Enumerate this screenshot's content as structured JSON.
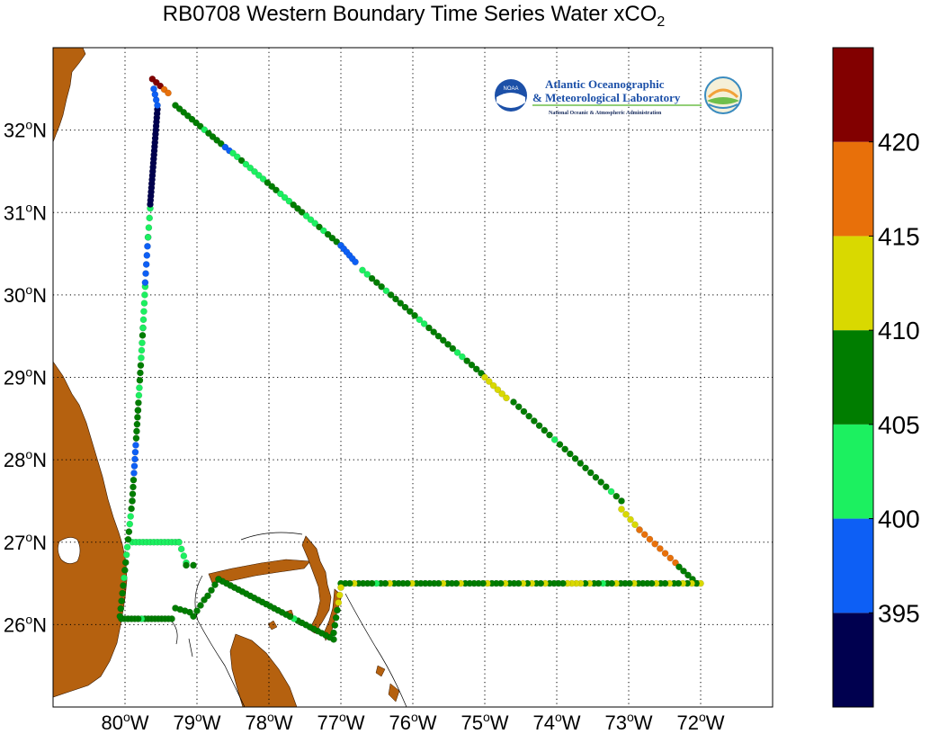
{
  "title": "RB0708 Western Boundary Time Series Water xCO",
  "title_sub": "2",
  "logo": {
    "line1": "Atlantic Oceanographic",
    "line2": "& Meteorological Laboratory",
    "line3": "National Oceanic & Atmospheric Administration",
    "badge": "NOAA",
    "colors": {
      "noaa_blue": "#1c50a8",
      "seal_green": "#6fbf4a",
      "seal_orange": "#f2a23a"
    }
  },
  "colors": {
    "land": "#b5610f",
    "ocean": "#ffffff",
    "grid": "#000000"
  },
  "chart_data": {
    "type": "scatter",
    "subtype": "geographic ship track colored by value",
    "xlim": [
      -81,
      -71
    ],
    "ylim": [
      25,
      33
    ],
    "lon_ticks": [
      -80,
      -79,
      -78,
      -77,
      -76,
      -75,
      -74,
      -73,
      -72
    ],
    "lat_ticks": [
      26,
      27,
      28,
      29,
      30,
      31,
      32
    ],
    "lon_labels": [
      "80",
      "79",
      "78",
      "77",
      "76",
      "75",
      "74",
      "73",
      "72"
    ],
    "lat_labels": [
      "26",
      "27",
      "28",
      "29",
      "30",
      "31",
      "32"
    ],
    "lon_suffix": "W",
    "lat_suffix": "N",
    "deg_symbol": "o",
    "grid": true,
    "colorbar": {
      "range": [
        390,
        425
      ],
      "tick_values": [
        395,
        400,
        405,
        410,
        415,
        420
      ],
      "tick_labels": [
        "395",
        "400",
        "405",
        "410",
        "415",
        "420"
      ],
      "bands": [
        {
          "from": 390,
          "to": 395,
          "color": "#00004f"
        },
        {
          "from": 395,
          "to": 400,
          "color": "#0d5ff5"
        },
        {
          "from": 400,
          "to": 405,
          "color": "#1cf060"
        },
        {
          "from": 405,
          "to": 410,
          "color": "#007d00"
        },
        {
          "from": 410,
          "to": 415,
          "color": "#d9d900"
        },
        {
          "from": 415,
          "to": 420,
          "color": "#e8700a"
        },
        {
          "from": 420,
          "to": 425,
          "color": "#820000"
        }
      ]
    },
    "track_segments": [
      {
        "from": [
          -79.62,
          32.62
        ],
        "to": [
          -79.4,
          32.45
        ],
        "n": 5,
        "values": [
          422,
          421,
          420,
          418,
          417
        ]
      },
      {
        "from": [
          -79.3,
          32.3
        ],
        "to": [
          -78.55,
          31.75
        ],
        "n": 14,
        "values": [
          407,
          406,
          407,
          406,
          408,
          406,
          407,
          402,
          406,
          407,
          406,
          405,
          398,
          397
        ]
      },
      {
        "from": [
          -78.5,
          31.72
        ],
        "to": [
          -77.0,
          30.6
        ],
        "n": 26,
        "values": [
          403,
          402,
          406,
          402,
          403,
          401,
          404,
          402,
          406,
          407,
          406,
          402,
          403,
          402,
          405,
          406,
          407,
          402,
          403,
          401,
          406,
          402,
          406,
          407,
          406,
          402
        ]
      },
      {
        "from": [
          -77.0,
          30.6
        ],
        "to": [
          -76.8,
          30.4
        ],
        "n": 6,
        "values": [
          398,
          397,
          398,
          396,
          397,
          398
        ]
      },
      {
        "from": [
          -76.7,
          30.3
        ],
        "to": [
          -75.05,
          29.05
        ],
        "n": 26,
        "values": [
          403,
          402,
          406,
          406,
          407,
          403,
          406,
          407,
          406,
          407,
          406,
          406,
          402,
          403,
          406,
          407,
          408,
          406,
          407,
          406,
          402,
          403,
          406,
          407,
          406,
          405
        ]
      },
      {
        "from": [
          -75.0,
          29.0
        ],
        "to": [
          -74.7,
          28.75
        ],
        "n": 6,
        "values": [
          412,
          411,
          413,
          412,
          411,
          410
        ]
      },
      {
        "from": [
          -74.6,
          28.7
        ],
        "to": [
          -73.1,
          27.5
        ],
        "n": 22,
        "values": [
          407,
          406,
          406,
          407,
          408,
          406,
          407,
          406,
          402,
          406,
          407,
          406,
          407,
          406,
          408,
          406,
          407,
          406,
          407,
          402,
          406,
          407
        ]
      },
      {
        "from": [
          -73.1,
          27.4
        ],
        "to": [
          -72.85,
          27.15
        ],
        "n": 5,
        "values": [
          412,
          411,
          412,
          411,
          412
        ]
      },
      {
        "from": [
          -72.85,
          27.15
        ],
        "to": [
          -72.35,
          26.75
        ],
        "n": 8,
        "values": [
          416,
          417,
          416,
          418,
          417,
          416,
          417,
          416
        ]
      },
      {
        "from": [
          -72.3,
          26.7
        ],
        "to": [
          -72.05,
          26.5
        ],
        "n": 5,
        "values": [
          408,
          407,
          406,
          408,
          407
        ]
      },
      {
        "from": [
          -72.0,
          26.5
        ],
        "to": [
          -77.0,
          26.5
        ],
        "n": 82,
        "values": [
          411,
          408,
          411,
          407,
          411,
          407,
          408,
          411,
          406,
          407,
          411,
          408,
          407,
          406,
          407,
          411,
          407,
          408,
          406,
          411,
          407,
          408,
          402,
          407,
          406,
          411,
          407,
          411,
          412,
          411,
          412,
          407,
          406,
          408,
          407,
          411,
          408,
          407,
          411,
          407,
          411,
          406,
          407,
          408,
          411,
          407,
          408,
          407,
          411,
          406,
          407,
          408,
          407,
          406,
          411,
          407,
          408,
          406,
          411,
          407,
          408,
          407,
          406,
          407,
          408,
          411,
          407,
          406,
          408,
          407,
          411,
          407,
          406,
          402,
          407,
          408,
          406,
          407,
          411,
          407,
          408,
          406
        ]
      },
      {
        "from": [
          -77.0,
          26.45
        ],
        "to": [
          -77.1,
          25.9
        ],
        "n": 7,
        "values": [
          412,
          411,
          412,
          407,
          406,
          407,
          408
        ]
      },
      {
        "from": [
          -77.1,
          25.82
        ],
        "to": [
          -78.7,
          26.55
        ],
        "n": 30,
        "values": [
          407,
          406,
          408,
          407,
          406,
          407,
          408,
          406,
          407,
          406,
          402,
          407,
          408,
          406,
          407,
          408,
          406,
          407,
          406,
          408,
          407,
          406,
          407,
          408,
          406,
          407,
          408,
          406,
          407,
          406
        ]
      },
      {
        "from": [
          -78.7,
          26.55
        ],
        "to": [
          -78.85,
          26.35
        ],
        "n": 4,
        "values": [
          407,
          406,
          407,
          408
        ]
      },
      {
        "from": [
          -78.9,
          26.3
        ],
        "to": [
          -79.05,
          26.1
        ],
        "n": 4,
        "values": [
          407,
          406,
          407,
          408
        ]
      },
      {
        "from": [
          -79.1,
          26.15
        ],
        "to": [
          -79.3,
          26.2
        ],
        "n": 4,
        "values": [
          407,
          406,
          408,
          407
        ]
      },
      {
        "from": [
          -79.35,
          26.07
        ],
        "to": [
          -80.05,
          26.07
        ],
        "n": 16,
        "values": [
          407,
          406,
          407,
          408,
          406,
          407,
          408,
          406,
          407,
          402,
          406,
          407,
          408,
          406,
          407,
          406
        ]
      },
      {
        "from": [
          -79.9,
          27.0
        ],
        "to": [
          -79.25,
          27.0
        ],
        "n": 14,
        "values": [
          402,
          403,
          402,
          401,
          403,
          402,
          403,
          401,
          402,
          403,
          402,
          401,
          402,
          403
        ]
      },
      {
        "from": [
          -79.25,
          27.0
        ],
        "to": [
          -79.15,
          26.75
        ],
        "n": 4,
        "values": [
          402,
          403,
          402,
          401
        ]
      },
      {
        "from": [
          -79.15,
          26.72
        ],
        "to": [
          -79.05,
          26.72
        ],
        "n": 2,
        "values": [
          406,
          407
        ]
      },
      {
        "from": [
          -80.07,
          26.1
        ],
        "to": [
          -79.9,
          27.5
        ],
        "n": 16,
        "values": [
          407,
          406,
          408,
          407,
          406,
          402,
          407,
          406,
          402,
          403,
          407,
          406,
          402,
          401,
          407,
          406
        ]
      },
      {
        "from": [
          -79.9,
          27.5
        ],
        "to": [
          -79.82,
          28.6
        ],
        "n": 14,
        "values": [
          407,
          406,
          407,
          408,
          398,
          397,
          398,
          397,
          396,
          407,
          406,
          407,
          406,
          407
        ]
      },
      {
        "from": [
          -79.82,
          28.6
        ],
        "to": [
          -79.75,
          29.6
        ],
        "n": 12,
        "values": [
          407,
          406,
          402,
          403,
          406,
          407,
          406,
          402,
          403,
          402,
          406,
          407
        ]
      },
      {
        "from": [
          -79.75,
          29.6
        ],
        "to": [
          -79.72,
          30.1
        ],
        "n": 6,
        "values": [
          402,
          403,
          402,
          401,
          402,
          403
        ]
      },
      {
        "from": [
          -79.72,
          30.15
        ],
        "to": [
          -79.68,
          30.7
        ],
        "n": 6,
        "values": [
          398,
          397,
          398,
          397,
          398,
          397
        ]
      },
      {
        "from": [
          -79.68,
          30.7
        ],
        "to": [
          -79.65,
          31.05
        ],
        "n": 4,
        "values": [
          402,
          403,
          402,
          401
        ]
      },
      {
        "from": [
          -79.65,
          31.1
        ],
        "to": [
          -79.55,
          32.25
        ],
        "n": 24,
        "values": [
          392,
          391,
          392,
          393,
          391,
          392,
          391,
          392,
          393,
          392,
          391,
          392,
          393,
          391,
          392,
          391,
          392,
          393,
          392,
          391,
          392,
          393,
          391,
          392
        ]
      },
      {
        "from": [
          -79.55,
          32.3
        ],
        "to": [
          -79.6,
          32.5
        ],
        "n": 4,
        "values": [
          397,
          398,
          397,
          398
        ]
      }
    ]
  }
}
